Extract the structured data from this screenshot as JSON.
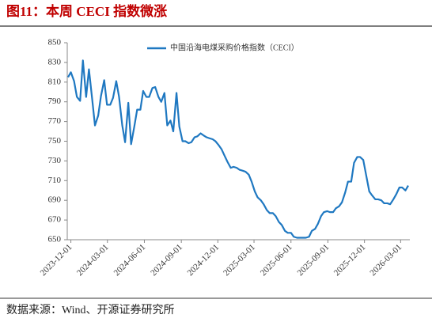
{
  "chart_data": {
    "type": "line",
    "title": "图11：本周 CECI 指数微涨",
    "source": "数据来源：Wind、开源证券研究所",
    "x": [
      "2023-11-24",
      "2023-12-01",
      "2023-12-09",
      "2023-12-16",
      "2023-12-24",
      "2023-12-31",
      "2024-01-08",
      "2024-01-15",
      "2024-01-23",
      "2024-01-30",
      "2024-02-07",
      "2024-02-14",
      "2024-02-22",
      "2024-02-29",
      "2024-03-08",
      "2024-03-15",
      "2024-03-23",
      "2024-03-30",
      "2024-04-07",
      "2024-04-14",
      "2024-04-22",
      "2024-04-29",
      "2024-05-07",
      "2024-05-14",
      "2024-05-22",
      "2024-05-29",
      "2024-06-06",
      "2024-06-13",
      "2024-06-21",
      "2024-06-28",
      "2024-07-06",
      "2024-07-13",
      "2024-07-21",
      "2024-07-28",
      "2024-08-05",
      "2024-08-12",
      "2024-08-20",
      "2024-08-27",
      "2024-09-04",
      "2024-09-11",
      "2024-09-19",
      "2024-09-26",
      "2024-10-04",
      "2024-10-11",
      "2024-10-19",
      "2024-10-26",
      "2024-11-03",
      "2024-11-10",
      "2024-11-18",
      "2024-11-25",
      "2024-12-03",
      "2024-12-10",
      "2024-12-18",
      "2024-12-25",
      "2025-01-02",
      "2025-01-09",
      "2025-01-17",
      "2025-01-24",
      "2025-02-01",
      "2025-02-08",
      "2025-02-16",
      "2025-02-23",
      "2025-03-03",
      "2025-03-10",
      "2025-03-18",
      "2025-03-25",
      "2025-04-02",
      "2025-04-09",
      "2025-04-17",
      "2025-04-24",
      "2025-05-02",
      "2025-05-09",
      "2025-05-17",
      "2025-05-24",
      "2025-06-01",
      "2025-06-08",
      "2025-06-16",
      "2025-06-23",
      "2025-07-01",
      "2025-07-08",
      "2025-07-16",
      "2025-07-23",
      "2025-07-31",
      "2025-08-07",
      "2025-08-15",
      "2025-08-22",
      "2025-08-30",
      "2025-09-06",
      "2025-09-14",
      "2025-09-21",
      "2025-09-29",
      "2025-10-06",
      "2025-10-14",
      "2025-10-21",
      "2025-10-29",
      "2025-11-05",
      "2025-11-13",
      "2025-11-20",
      "2025-11-28",
      "2025-12-05",
      "2025-12-13",
      "2025-12-20",
      "2025-12-28",
      "2026-01-04",
      "2026-01-12",
      "2026-01-19",
      "2026-01-27",
      "2026-02-03",
      "2026-02-11",
      "2026-02-18",
      "2026-02-26",
      "2026-03-05",
      "2026-03-13",
      "2026-03-20"
    ],
    "series": [
      {
        "name": "中国沿海电煤采购价格指数（CECI）",
        "color": "#1f78c1",
        "values": [
          815,
          820,
          811,
          795,
          791,
          832,
          795,
          823,
          793,
          766,
          776,
          796,
          812,
          787,
          787,
          794,
          811,
          795,
          766,
          749,
          789,
          747,
          765,
          782,
          782,
          801,
          795,
          795,
          804,
          805,
          795,
          790,
          799,
          766,
          771,
          760,
          799,
          765,
          750,
          750,
          748,
          749,
          754,
          755,
          758,
          756,
          754,
          753,
          752,
          750,
          746,
          742,
          735,
          729,
          723,
          724,
          723,
          721,
          720,
          719,
          716,
          709,
          699,
          693,
          690,
          686,
          680,
          677,
          677,
          674,
          668,
          665,
          659,
          657,
          657,
          653,
          652,
          652,
          652,
          652,
          653,
          659,
          661,
          666,
          674,
          678,
          679,
          678,
          678,
          682,
          684,
          688,
          698,
          709,
          709,
          728,
          734,
          734,
          731,
          716,
          699,
          695,
          691,
          691,
          690,
          687,
          687,
          686,
          691,
          696,
          703,
          703,
          700,
          705
        ]
      }
    ],
    "xlim": [
      "2023-11-22",
      "2026-03-24"
    ],
    "xticks": [
      "2023-12-01",
      "2024-03-01",
      "2024-06-01",
      "2024-09-01",
      "2024-12-01",
      "2025-03-01",
      "2025-06-01",
      "2025-09-01",
      "2025-12-01",
      "2026-03-01"
    ],
    "ylim": [
      650,
      850
    ],
    "yticks": [
      650,
      670,
      690,
      710,
      730,
      750,
      770,
      790,
      810,
      830,
      850
    ],
    "grid": false,
    "legend": "top"
  }
}
